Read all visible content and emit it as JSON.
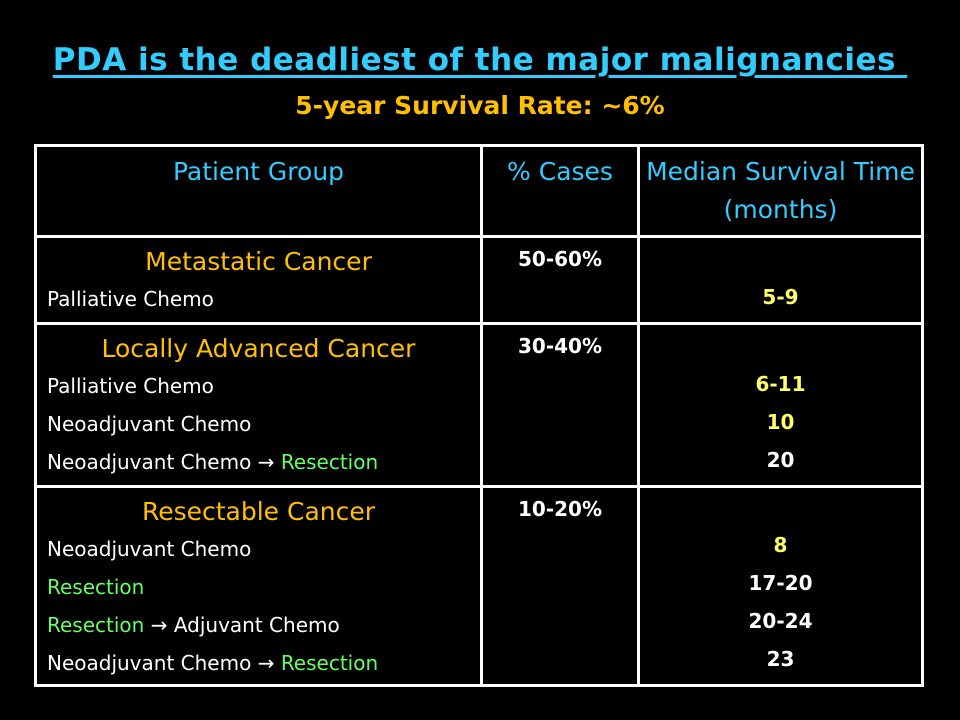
{
  "title": "PDA is the deadliest of the major malignancies ",
  "subtitle": "5-year Survival Rate: ~6%",
  "colors": {
    "background": "#000000",
    "title": "#33ccff",
    "group": "#ffc000",
    "resection": "#66ff66",
    "highlight_value": "#ffff66",
    "text": "#ffffff"
  },
  "table": {
    "headers": {
      "group": "Patient Group",
      "cases": "% Cases",
      "survival": "Median Survival Time (months)"
    },
    "groups": [
      {
        "name": "Metastatic Cancer",
        "cases": "50-60%",
        "treatments": [
          {
            "parts": [
              "Palliative Chemo"
            ],
            "survival": "5-9"
          }
        ]
      },
      {
        "name": "Locally Advanced Cancer",
        "cases": "30-40%",
        "treatments": [
          {
            "parts": [
              "Palliative Chemo"
            ],
            "survival": "6-11"
          },
          {
            "parts": [
              "Neoadjuvant Chemo"
            ],
            "survival": "10"
          },
          {
            "parts": [
              "Neoadjuvant Chemo",
              "→",
              "Resection"
            ],
            "survival": "20"
          }
        ]
      },
      {
        "name": "Resectable Cancer",
        "cases": "10-20%",
        "treatments": [
          {
            "parts": [
              "Neoadjuvant Chemo"
            ],
            "survival": "8"
          },
          {
            "parts": [
              "Resection"
            ],
            "survival": "17-20"
          },
          {
            "parts": [
              "Resection",
              "→",
              "Adjuvant Chemo"
            ],
            "survival": "20-24"
          },
          {
            "parts": [
              "Neoadjuvant Chemo",
              "→",
              "Resection"
            ],
            "survival": "23"
          }
        ]
      }
    ]
  }
}
